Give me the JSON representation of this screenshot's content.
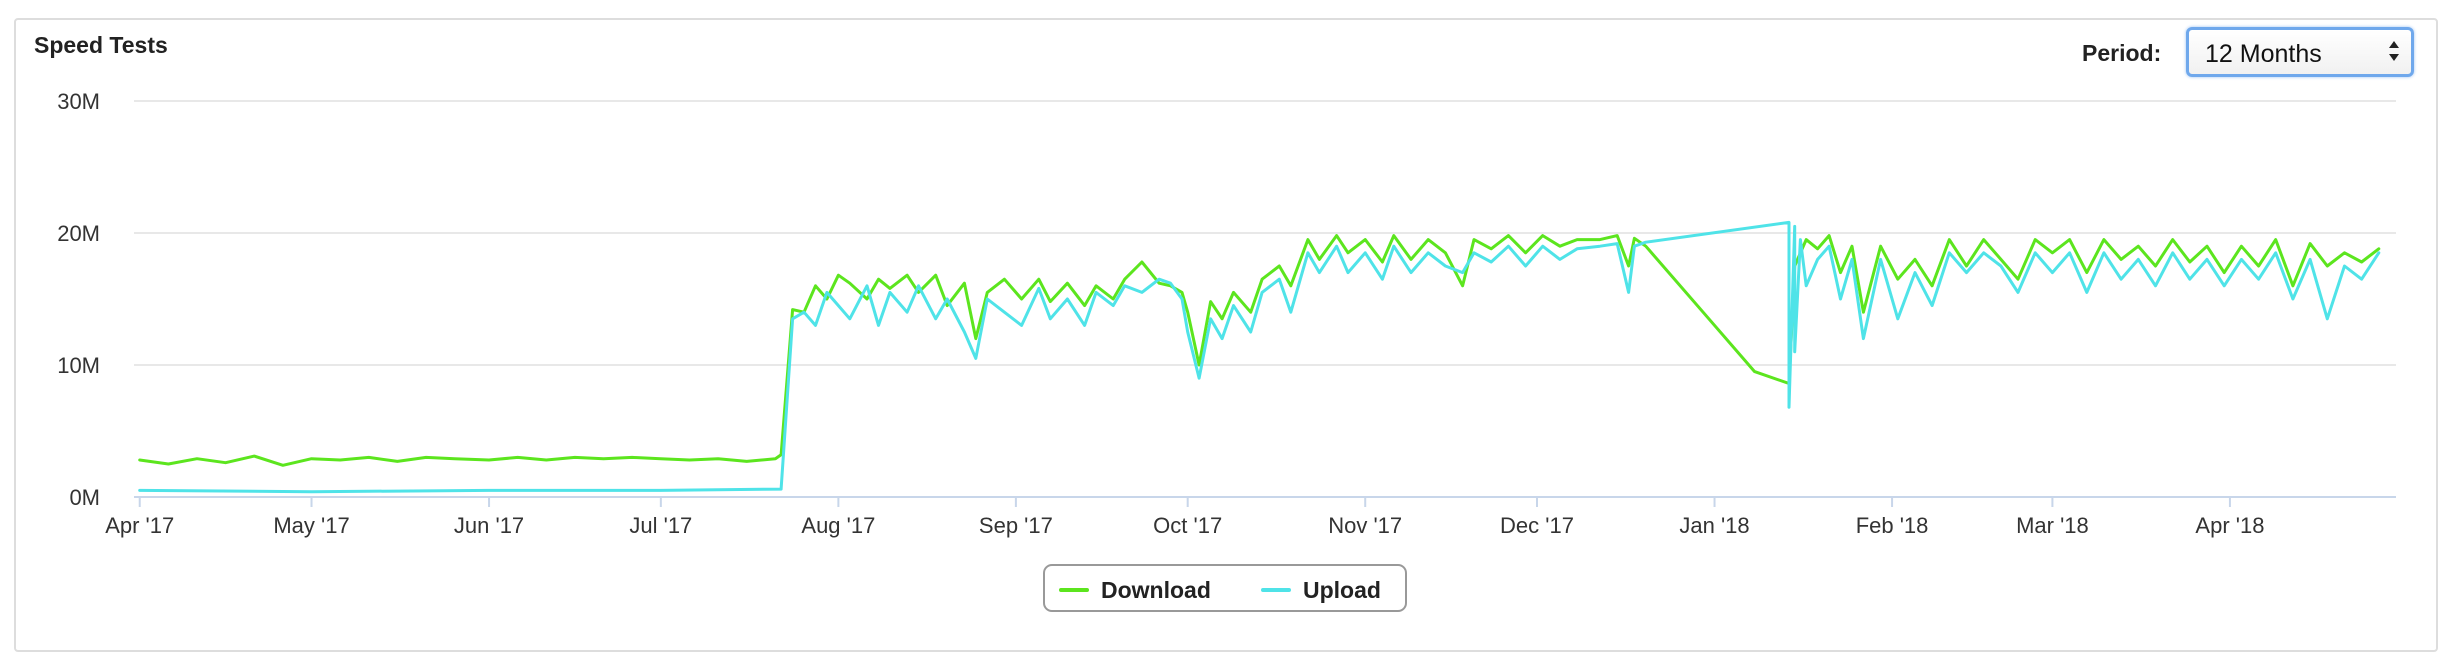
{
  "panel": {
    "title": "Speed Tests"
  },
  "period": {
    "label": "Period:",
    "selected": "12 Months"
  },
  "legend": [
    {
      "name": "Download",
      "color": "#5ce51e"
    },
    {
      "name": "Upload",
      "color": "#4fe3e8"
    }
  ],
  "chart_data": {
    "type": "line",
    "title": "Speed Tests",
    "x_unit": "date",
    "xlim": [
      "2017-03-31",
      "2018-04-30"
    ],
    "ylim": [
      0,
      30
    ],
    "y_ticks": [
      {
        "label": "30M",
        "value": 30
      },
      {
        "label": "20M",
        "value": 20
      },
      {
        "label": "10M",
        "value": 10
      },
      {
        "label": "0M",
        "value": 0
      }
    ],
    "x_ticks": [
      {
        "label": "Apr '17",
        "date": "2017-04-01"
      },
      {
        "label": "May '17",
        "date": "2017-05-01"
      },
      {
        "label": "Jun '17",
        "date": "2017-06-01"
      },
      {
        "label": "Jul '17",
        "date": "2017-07-01"
      },
      {
        "label": "Aug '17",
        "date": "2017-08-01"
      },
      {
        "label": "Sep '17",
        "date": "2017-09-01"
      },
      {
        "label": "Oct '17",
        "date": "2017-10-01"
      },
      {
        "label": "Nov '17",
        "date": "2017-11-01"
      },
      {
        "label": "Dec '17",
        "date": "2017-12-01"
      },
      {
        "label": "Jan '18",
        "date": "2018-01-01"
      },
      {
        "label": "Feb '18",
        "date": "2018-02-01"
      },
      {
        "label": "Mar '18",
        "date": "2018-03-01"
      },
      {
        "label": "Apr '18",
        "date": "2018-04-01"
      }
    ],
    "grid": true,
    "legend_position": "bottom-center",
    "series": [
      {
        "name": "Download",
        "color": "#5ce51e",
        "points": [
          [
            "2017-04-01",
            2.8
          ],
          [
            "2017-04-06",
            2.5
          ],
          [
            "2017-04-11",
            2.9
          ],
          [
            "2017-04-16",
            2.6
          ],
          [
            "2017-04-21",
            3.1
          ],
          [
            "2017-04-26",
            2.4
          ],
          [
            "2017-05-01",
            2.9
          ],
          [
            "2017-05-06",
            2.8
          ],
          [
            "2017-05-11",
            3.0
          ],
          [
            "2017-05-16",
            2.7
          ],
          [
            "2017-05-21",
            3.0
          ],
          [
            "2017-05-26",
            2.9
          ],
          [
            "2017-06-01",
            2.8
          ],
          [
            "2017-06-06",
            3.0
          ],
          [
            "2017-06-11",
            2.8
          ],
          [
            "2017-06-16",
            3.0
          ],
          [
            "2017-06-21",
            2.9
          ],
          [
            "2017-06-26",
            3.0
          ],
          [
            "2017-07-01",
            2.9
          ],
          [
            "2017-07-06",
            2.8
          ],
          [
            "2017-07-11",
            2.9
          ],
          [
            "2017-07-16",
            2.7
          ],
          [
            "2017-07-21",
            2.9
          ],
          [
            "2017-07-22",
            3.2
          ],
          [
            "2017-07-24",
            14.2
          ],
          [
            "2017-07-26",
            14.0
          ],
          [
            "2017-07-28",
            16.0
          ],
          [
            "2017-07-30",
            15.0
          ],
          [
            "2017-08-01",
            16.8
          ],
          [
            "2017-08-03",
            16.2
          ],
          [
            "2017-08-06",
            15.0
          ],
          [
            "2017-08-08",
            16.5
          ],
          [
            "2017-08-10",
            15.8
          ],
          [
            "2017-08-13",
            16.8
          ],
          [
            "2017-08-15",
            15.5
          ],
          [
            "2017-08-18",
            16.8
          ],
          [
            "2017-08-20",
            14.5
          ],
          [
            "2017-08-23",
            16.2
          ],
          [
            "2017-08-25",
            12.0
          ],
          [
            "2017-08-27",
            15.5
          ],
          [
            "2017-08-30",
            16.5
          ],
          [
            "2017-09-02",
            15.0
          ],
          [
            "2017-09-05",
            16.5
          ],
          [
            "2017-09-07",
            14.8
          ],
          [
            "2017-09-10",
            16.2
          ],
          [
            "2017-09-13",
            14.5
          ],
          [
            "2017-09-15",
            16.0
          ],
          [
            "2017-09-18",
            15.0
          ],
          [
            "2017-09-20",
            16.5
          ],
          [
            "2017-09-23",
            17.8
          ],
          [
            "2017-09-26",
            16.2
          ],
          [
            "2017-09-28",
            16.0
          ],
          [
            "2017-09-30",
            15.5
          ],
          [
            "2017-10-01",
            14.0
          ],
          [
            "2017-10-03",
            10.0
          ],
          [
            "2017-10-05",
            14.8
          ],
          [
            "2017-10-07",
            13.5
          ],
          [
            "2017-10-09",
            15.5
          ],
          [
            "2017-10-12",
            14.0
          ],
          [
            "2017-10-14",
            16.5
          ],
          [
            "2017-10-17",
            17.5
          ],
          [
            "2017-10-19",
            16.0
          ],
          [
            "2017-10-22",
            19.5
          ],
          [
            "2017-10-24",
            18.0
          ],
          [
            "2017-10-27",
            19.8
          ],
          [
            "2017-10-29",
            18.5
          ],
          [
            "2017-11-01",
            19.5
          ],
          [
            "2017-11-04",
            17.8
          ],
          [
            "2017-11-06",
            19.8
          ],
          [
            "2017-11-09",
            18.0
          ],
          [
            "2017-11-12",
            19.5
          ],
          [
            "2017-11-15",
            18.5
          ],
          [
            "2017-11-18",
            16.0
          ],
          [
            "2017-11-20",
            19.5
          ],
          [
            "2017-11-23",
            18.8
          ],
          [
            "2017-11-26",
            19.8
          ],
          [
            "2017-11-29",
            18.5
          ],
          [
            "2017-12-02",
            19.8
          ],
          [
            "2017-12-05",
            19.0
          ],
          [
            "2017-12-08",
            19.5
          ],
          [
            "2017-12-12",
            19.5
          ],
          [
            "2017-12-15",
            19.8
          ],
          [
            "2017-12-17",
            17.5
          ],
          [
            "2017-12-18",
            19.6
          ],
          [
            "2017-12-20",
            19.0
          ],
          [
            "2017-12-30",
            14.0
          ],
          [
            "2018-01-08",
            9.5
          ],
          [
            "2018-01-14",
            8.6
          ],
          [
            "2018-01-15",
            17.5
          ],
          [
            "2018-01-17",
            19.5
          ],
          [
            "2018-01-19",
            18.8
          ],
          [
            "2018-01-21",
            19.8
          ],
          [
            "2018-01-23",
            17.0
          ],
          [
            "2018-01-25",
            19.0
          ],
          [
            "2018-01-27",
            14.0
          ],
          [
            "2018-01-30",
            19.0
          ],
          [
            "2018-02-02",
            16.5
          ],
          [
            "2018-02-05",
            18.0
          ],
          [
            "2018-02-08",
            16.0
          ],
          [
            "2018-02-11",
            19.5
          ],
          [
            "2018-02-14",
            17.5
          ],
          [
            "2018-02-17",
            19.5
          ],
          [
            "2018-02-20",
            18.0
          ],
          [
            "2018-02-23",
            16.5
          ],
          [
            "2018-02-26",
            19.5
          ],
          [
            "2018-03-01",
            18.5
          ],
          [
            "2018-03-04",
            19.5
          ],
          [
            "2018-03-07",
            17.0
          ],
          [
            "2018-03-10",
            19.5
          ],
          [
            "2018-03-13",
            18.0
          ],
          [
            "2018-03-16",
            19.0
          ],
          [
            "2018-03-19",
            17.5
          ],
          [
            "2018-03-22",
            19.5
          ],
          [
            "2018-03-25",
            17.8
          ],
          [
            "2018-03-28",
            19.0
          ],
          [
            "2018-03-31",
            17.0
          ],
          [
            "2018-04-03",
            19.0
          ],
          [
            "2018-04-06",
            17.5
          ],
          [
            "2018-04-09",
            19.5
          ],
          [
            "2018-04-12",
            16.0
          ],
          [
            "2018-04-15",
            19.2
          ],
          [
            "2018-04-18",
            17.5
          ],
          [
            "2018-04-21",
            18.5
          ],
          [
            "2018-04-24",
            17.8
          ],
          [
            "2018-04-27",
            18.8
          ]
        ]
      },
      {
        "name": "Upload",
        "color": "#4fe3e8",
        "points": [
          [
            "2017-04-01",
            0.5
          ],
          [
            "2017-05-01",
            0.4
          ],
          [
            "2017-06-01",
            0.5
          ],
          [
            "2017-07-01",
            0.5
          ],
          [
            "2017-07-22",
            0.6
          ],
          [
            "2017-07-24",
            13.5
          ],
          [
            "2017-07-26",
            14.0
          ],
          [
            "2017-07-28",
            13.0
          ],
          [
            "2017-07-30",
            15.5
          ],
          [
            "2017-08-01",
            14.5
          ],
          [
            "2017-08-03",
            13.5
          ],
          [
            "2017-08-06",
            16.0
          ],
          [
            "2017-08-08",
            13.0
          ],
          [
            "2017-08-10",
            15.5
          ],
          [
            "2017-08-13",
            14.0
          ],
          [
            "2017-08-15",
            16.0
          ],
          [
            "2017-08-18",
            13.5
          ],
          [
            "2017-08-20",
            15.0
          ],
          [
            "2017-08-23",
            12.5
          ],
          [
            "2017-08-25",
            10.5
          ],
          [
            "2017-08-27",
            15.0
          ],
          [
            "2017-08-30",
            14.0
          ],
          [
            "2017-09-02",
            13.0
          ],
          [
            "2017-09-05",
            15.8
          ],
          [
            "2017-09-07",
            13.5
          ],
          [
            "2017-09-10",
            15.0
          ],
          [
            "2017-09-13",
            13.0
          ],
          [
            "2017-09-15",
            15.5
          ],
          [
            "2017-09-18",
            14.5
          ],
          [
            "2017-09-20",
            16.0
          ],
          [
            "2017-09-23",
            15.5
          ],
          [
            "2017-09-26",
            16.5
          ],
          [
            "2017-09-28",
            16.2
          ],
          [
            "2017-09-30",
            15.0
          ],
          [
            "2017-10-01",
            12.5
          ],
          [
            "2017-10-03",
            9.0
          ],
          [
            "2017-10-05",
            13.5
          ],
          [
            "2017-10-07",
            12.0
          ],
          [
            "2017-10-09",
            14.5
          ],
          [
            "2017-10-12",
            12.5
          ],
          [
            "2017-10-14",
            15.5
          ],
          [
            "2017-10-17",
            16.5
          ],
          [
            "2017-10-19",
            14.0
          ],
          [
            "2017-10-22",
            18.5
          ],
          [
            "2017-10-24",
            17.0
          ],
          [
            "2017-10-27",
            19.0
          ],
          [
            "2017-10-29",
            17.0
          ],
          [
            "2017-11-01",
            18.5
          ],
          [
            "2017-11-04",
            16.5
          ],
          [
            "2017-11-06",
            19.0
          ],
          [
            "2017-11-09",
            17.0
          ],
          [
            "2017-11-12",
            18.5
          ],
          [
            "2017-11-15",
            17.5
          ],
          [
            "2017-11-18",
            17.0
          ],
          [
            "2017-11-20",
            18.5
          ],
          [
            "2017-11-23",
            17.8
          ],
          [
            "2017-11-26",
            19.0
          ],
          [
            "2017-11-29",
            17.5
          ],
          [
            "2017-12-02",
            19.0
          ],
          [
            "2017-12-05",
            18.0
          ],
          [
            "2017-12-08",
            18.8
          ],
          [
            "2017-12-12",
            19.0
          ],
          [
            "2017-12-15",
            19.2
          ],
          [
            "2017-12-17",
            15.5
          ],
          [
            "2017-12-18",
            19.0
          ],
          [
            "2017-12-20",
            19.3
          ],
          [
            "2018-01-14",
            20.8
          ],
          [
            "2018-01-14",
            6.8
          ],
          [
            "2018-01-15",
            20.5
          ],
          [
            "2018-01-15",
            11.0
          ],
          [
            "2018-01-16",
            19.5
          ],
          [
            "2018-01-17",
            16.0
          ],
          [
            "2018-01-19",
            18.0
          ],
          [
            "2018-01-21",
            19.0
          ],
          [
            "2018-01-23",
            15.0
          ],
          [
            "2018-01-25",
            18.0
          ],
          [
            "2018-01-27",
            12.0
          ],
          [
            "2018-01-30",
            18.0
          ],
          [
            "2018-02-02",
            13.5
          ],
          [
            "2018-02-05",
            17.0
          ],
          [
            "2018-02-08",
            14.5
          ],
          [
            "2018-02-11",
            18.5
          ],
          [
            "2018-02-14",
            17.0
          ],
          [
            "2018-02-17",
            18.5
          ],
          [
            "2018-02-20",
            17.5
          ],
          [
            "2018-02-23",
            15.5
          ],
          [
            "2018-02-26",
            18.5
          ],
          [
            "2018-03-01",
            17.0
          ],
          [
            "2018-03-04",
            18.5
          ],
          [
            "2018-03-07",
            15.5
          ],
          [
            "2018-03-10",
            18.5
          ],
          [
            "2018-03-13",
            16.5
          ],
          [
            "2018-03-16",
            18.0
          ],
          [
            "2018-03-19",
            16.0
          ],
          [
            "2018-03-22",
            18.5
          ],
          [
            "2018-03-25",
            16.5
          ],
          [
            "2018-03-28",
            18.0
          ],
          [
            "2018-03-31",
            16.0
          ],
          [
            "2018-04-03",
            18.0
          ],
          [
            "2018-04-06",
            16.5
          ],
          [
            "2018-04-09",
            18.5
          ],
          [
            "2018-04-12",
            15.0
          ],
          [
            "2018-04-15",
            18.0
          ],
          [
            "2018-04-18",
            13.5
          ],
          [
            "2018-04-21",
            17.5
          ],
          [
            "2018-04-24",
            16.5
          ],
          [
            "2018-04-27",
            18.5
          ]
        ]
      }
    ]
  }
}
